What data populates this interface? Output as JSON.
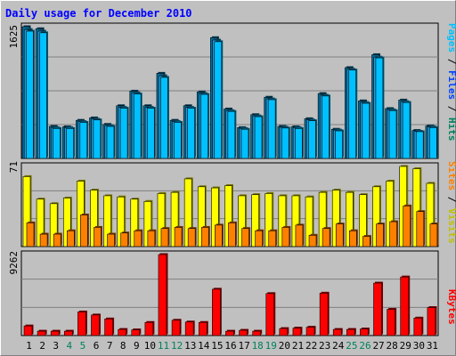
{
  "chart_data": [
    {
      "type": "bar",
      "panel": "top",
      "categories": [
        "1",
        "2",
        "3",
        "4",
        "5",
        "6",
        "7",
        "8",
        "9",
        "10",
        "11",
        "12",
        "13",
        "14",
        "15",
        "16",
        "17",
        "18",
        "19",
        "20",
        "21",
        "22",
        "23",
        "24",
        "25",
        "26",
        "27",
        "28",
        "29",
        "30",
        "31"
      ],
      "series": [
        {
          "name": "Hits",
          "values": [
            1625,
            1600,
            395,
            390,
            470,
            500,
            420,
            650,
            830,
            650,
            1050,
            470,
            650,
            820,
            1490,
            610,
            380,
            540,
            755,
            395,
            390,
            490,
            800,
            360,
            1120,
            710,
            1280,
            615,
            720,
            345,
            400
          ]
        },
        {
          "name": "Files",
          "values": [
            1590,
            1570,
            380,
            380,
            455,
            485,
            405,
            630,
            810,
            630,
            1020,
            455,
            630,
            800,
            1460,
            590,
            370,
            525,
            735,
            385,
            380,
            475,
            780,
            350,
            1100,
            690,
            1250,
            600,
            700,
            335,
            390
          ]
        },
        {
          "name": "Pages",
          "values": [
            1570,
            1550,
            370,
            370,
            445,
            475,
            395,
            620,
            795,
            620,
            1000,
            445,
            620,
            790,
            1440,
            580,
            360,
            515,
            725,
            375,
            370,
            465,
            770,
            340,
            1090,
            680,
            1240,
            590,
            690,
            330,
            380
          ]
        }
      ],
      "ytick": "1625",
      "ylim": [
        0,
        1625
      ]
    },
    {
      "type": "bar",
      "panel": "middle",
      "categories": [
        "1",
        "2",
        "3",
        "4",
        "5",
        "6",
        "7",
        "8",
        "9",
        "10",
        "11",
        "12",
        "13",
        "14",
        "15",
        "16",
        "17",
        "18",
        "19",
        "20",
        "21",
        "22",
        "23",
        "24",
        "25",
        "26",
        "27",
        "28",
        "29",
        "30",
        "31"
      ],
      "series": [
        {
          "name": "Visits",
          "values": [
            62,
            42,
            38,
            43,
            58,
            50,
            45,
            44,
            42,
            40,
            47,
            48,
            60,
            53,
            52,
            54,
            45,
            46,
            47,
            45,
            45,
            44,
            48,
            50,
            48,
            46,
            53,
            58,
            71,
            69,
            56
          ]
        },
        {
          "name": "Sites",
          "values": [
            21,
            11,
            11,
            14,
            28,
            17,
            11,
            12,
            14,
            14,
            16,
            17,
            16,
            17,
            19,
            21,
            16,
            14,
            14,
            17,
            19,
            10,
            16,
            20,
            14,
            9,
            20,
            22,
            36,
            31,
            20
          ]
        }
      ],
      "ytick": "71",
      "ylim": [
        0,
        71
      ]
    },
    {
      "type": "bar",
      "panel": "bottom",
      "categories": [
        "1",
        "2",
        "3",
        "4",
        "5",
        "6",
        "7",
        "8",
        "9",
        "10",
        "11",
        "12",
        "13",
        "14",
        "15",
        "16",
        "17",
        "18",
        "19",
        "20",
        "21",
        "22",
        "23",
        "24",
        "25",
        "26",
        "27",
        "28",
        "29",
        "30",
        "31"
      ],
      "series": [
        {
          "name": "KBytes",
          "values": [
            1100,
            500,
            500,
            500,
            2700,
            2350,
            1900,
            700,
            650,
            1500,
            9262,
            1750,
            1550,
            1500,
            5300,
            500,
            600,
            500,
            4800,
            800,
            850,
            950,
            4850,
            700,
            700,
            750,
            6000,
            3000,
            6700,
            2000,
            3200
          ]
        }
      ],
      "ytick": "9262",
      "ylim": [
        0,
        9262
      ]
    }
  ],
  "title": "Daily usage for December 2010",
  "legend_top": {
    "pages": "Pages",
    "files": "Files",
    "hits": "Hits",
    "sep": " / "
  },
  "legend_mid": {
    "sites": "Sites",
    "visits": "Visits",
    "sep": " / "
  },
  "legend_bot": {
    "kbytes": "KBytes"
  },
  "weekend_days": [
    "4",
    "5",
    "11",
    "12",
    "18",
    "19",
    "25",
    "26"
  ],
  "colors": {
    "background": "#c0c0c0",
    "title": "#0000ff",
    "hits": "#00805c",
    "files": "#0040ff",
    "pages": "#00c0ff",
    "visits": "#ffff00",
    "sites": "#ff8000",
    "kbytes": "#ff0000",
    "weekend_label": "#00805c",
    "weekday_label": "#000000"
  }
}
